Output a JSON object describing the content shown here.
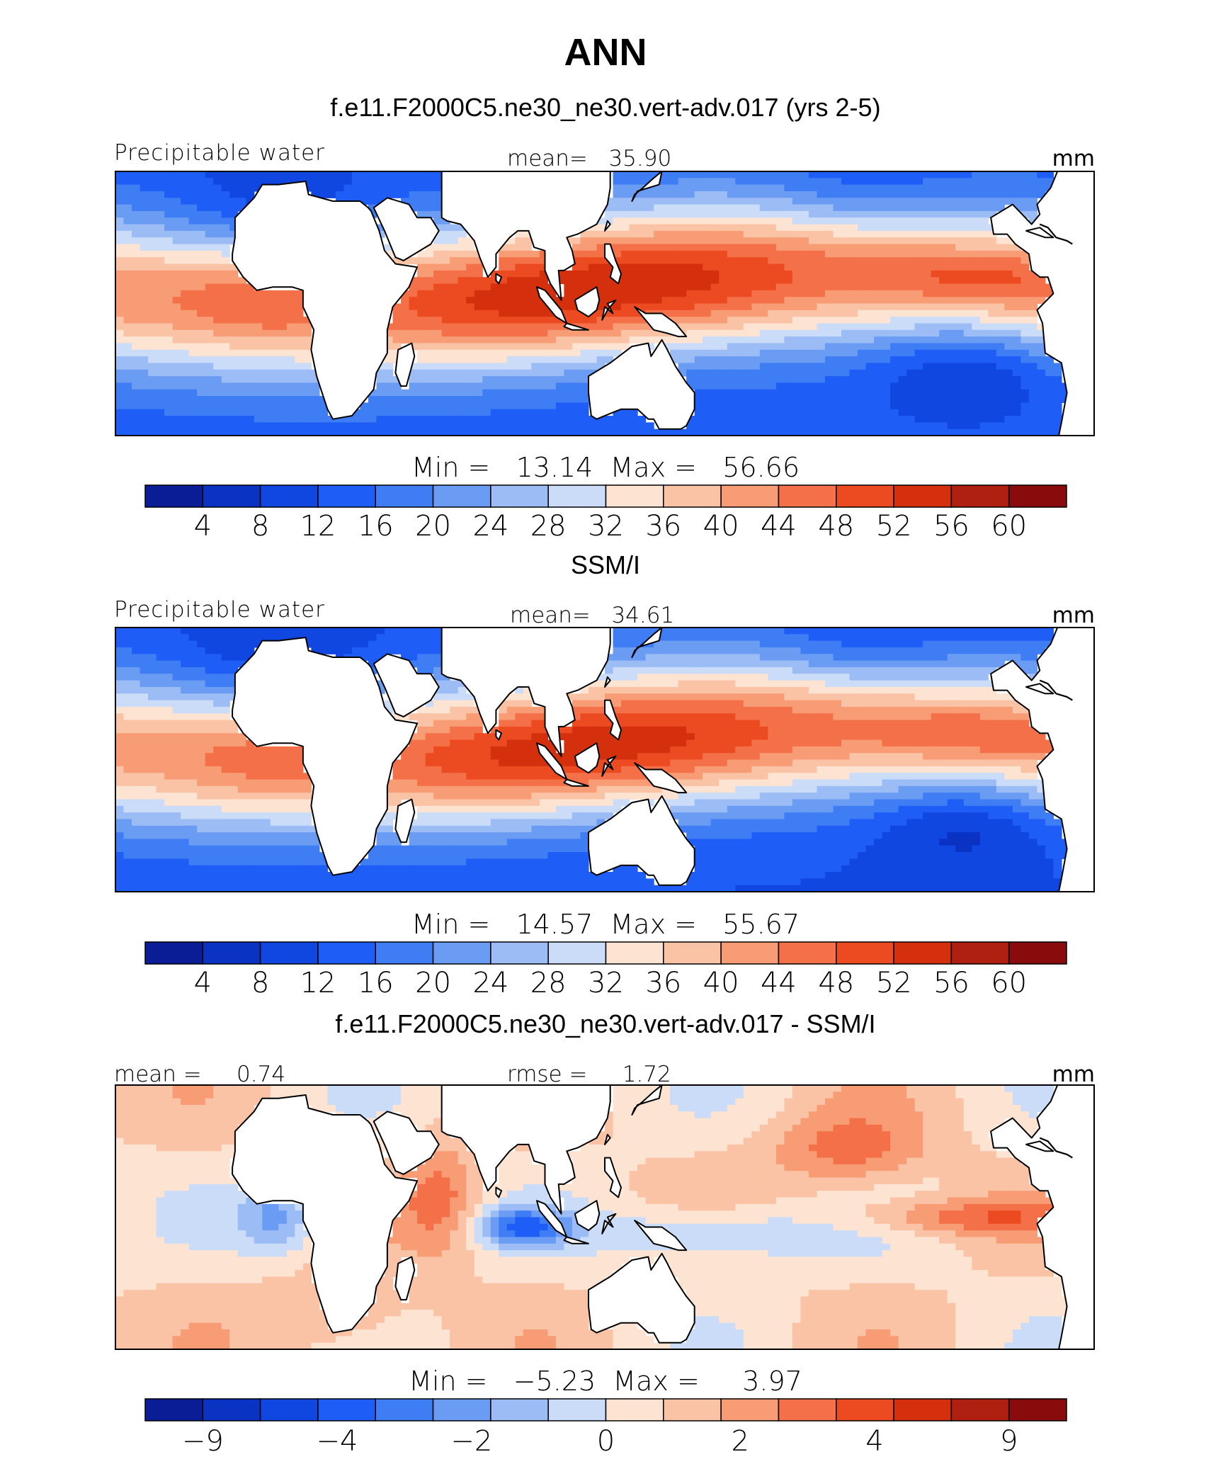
{
  "title": "ANN",
  "panels": [
    {
      "id": "model",
      "heading": "f.e11.F2000C5.ne30_ne30.vert-adv.017 (yrs 2-5)",
      "left_label": "Precipitable water",
      "center_label": "mean=   35.90",
      "right_label": "mm",
      "minmax": "Min =   13.14  Max =   56.66",
      "colorbar_ticks": [
        "4",
        "8",
        "12",
        "16",
        "20",
        "24",
        "28",
        "32",
        "36",
        "40",
        "44",
        "48",
        "52",
        "56",
        "60"
      ],
      "field": "model"
    },
    {
      "id": "obs",
      "heading": "SSM/I",
      "left_label": "Precipitable water",
      "center_label": "mean=   34.61",
      "right_label": "mm",
      "minmax": "Min =   14.57  Max =   55.67",
      "colorbar_ticks": [
        "4",
        "8",
        "12",
        "16",
        "20",
        "24",
        "28",
        "32",
        "36",
        "40",
        "44",
        "48",
        "52",
        "56",
        "60"
      ],
      "field": "obs"
    },
    {
      "id": "diff",
      "heading": "f.e11.F2000C5.ne30_ne30.vert-adv.017 - SSM/I",
      "left_label": "mean =     0.74",
      "center_label": "rmse =     1.72",
      "right_label": "mm",
      "minmax": "Min =   −5.23  Max =     3.97",
      "colorbar_ticks": [
        "−9",
        "",
        "−4",
        "",
        "−2",
        "",
        "0",
        "",
        "2",
        "",
        "4",
        "",
        "9"
      ],
      "field": "diff"
    }
  ],
  "chart_data": [
    {
      "type": "heatmap",
      "title": "f.e11.F2000C5.ne30_ne30.vert-adv.017 (yrs 2-5)",
      "variable": "Precipitable water",
      "units": "mm",
      "mean": 35.9,
      "min": 13.14,
      "max": 56.66,
      "levels": [
        4,
        8,
        12,
        16,
        20,
        24,
        28,
        32,
        36,
        40,
        44,
        48,
        52,
        56,
        60
      ],
      "lon_range": [
        -60,
        300
      ],
      "lat_range": [
        -40,
        40
      ]
    },
    {
      "type": "heatmap",
      "title": "SSM/I",
      "variable": "Precipitable water",
      "units": "mm",
      "mean": 34.61,
      "min": 14.57,
      "max": 55.67,
      "levels": [
        4,
        8,
        12,
        16,
        20,
        24,
        28,
        32,
        36,
        40,
        44,
        48,
        52,
        56,
        60
      ],
      "lon_range": [
        -60,
        300
      ],
      "lat_range": [
        -40,
        40
      ]
    },
    {
      "type": "heatmap",
      "title": "f.e11.F2000C5.ne30_ne30.vert-adv.017 - SSM/I",
      "units": "mm",
      "mean": 0.74,
      "rmse": 1.72,
      "min": -5.23,
      "max": 3.97,
      "levels": [
        -9,
        -6,
        -4,
        -3,
        -2,
        -1,
        0,
        1,
        2,
        3,
        4,
        6,
        9
      ],
      "lon_range": [
        -60,
        300
      ],
      "lat_range": [
        -40,
        40
      ]
    }
  ],
  "colors": {
    "palette": [
      "#0a1c96",
      "#0a32c3",
      "#1147e1",
      "#1e5ef6",
      "#3f7df4",
      "#6b9cf3",
      "#9cbcf6",
      "#cadcf8",
      "#fde3d2",
      "#fbc3a5",
      "#f79c75",
      "#f47048",
      "#ec4b22",
      "#d5300e",
      "#b02010",
      "#8a0b0b"
    ],
    "land": "#ffffff",
    "missing": "#ffffff"
  }
}
